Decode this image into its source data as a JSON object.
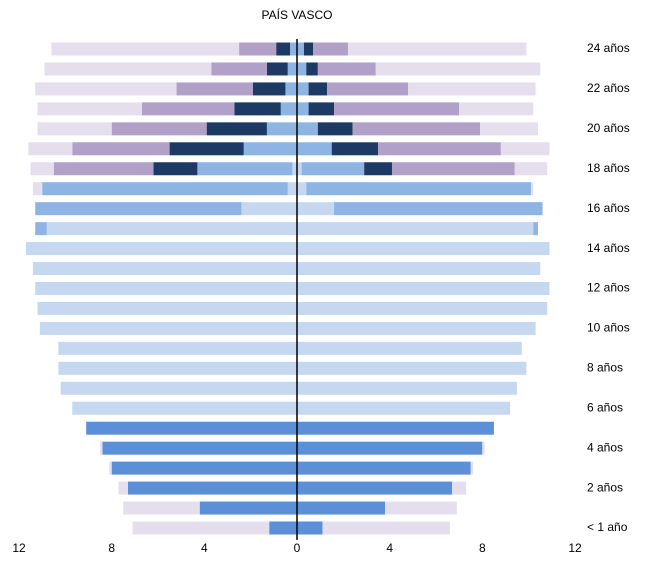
{
  "chart_data": {
    "type": "diverging_stacked_bar",
    "orientation": "horizontal",
    "title": "PAÍS VASCO",
    "categories": [
      "< 1 año",
      null,
      "2 años",
      null,
      "4 años",
      null,
      "6 años",
      null,
      "8 años",
      null,
      "10 años",
      null,
      "12 años",
      null,
      "14 años",
      null,
      "16 años",
      null,
      "18 años",
      null,
      "20 años",
      null,
      "22 años",
      null,
      "24 años"
    ],
    "xlim": [
      -12,
      12
    ],
    "xticks": [
      {
        "value": -12,
        "label": "12"
      },
      {
        "value": -8,
        "label": "8"
      },
      {
        "value": -4,
        "label": "4"
      },
      0,
      4,
      8,
      12
    ],
    "series": [
      {
        "color": "#5b8fd7",
        "values": [
          -1.2,
          -4.2,
          -7.3,
          -8.0,
          -8.4,
          -9.1,
          0,
          0,
          0,
          0,
          0,
          0,
          0,
          0,
          0,
          0,
          0,
          0,
          0,
          0,
          0,
          0,
          0,
          0,
          0
        ]
      },
      {
        "color": "#c6d8f0",
        "values": [
          0,
          0,
          0,
          0,
          0,
          0,
          -9.7,
          -10.2,
          -10.3,
          -10.3,
          -11.1,
          -11.2,
          -11.3,
          -11.4,
          -11.7,
          -10.8,
          -2.4,
          -0.4,
          -0.2,
          0,
          0,
          0,
          0,
          0,
          0
        ]
      },
      {
        "color": "#8db4e3",
        "values": [
          0,
          0,
          0,
          0,
          0,
          0,
          0,
          0,
          0,
          0,
          0,
          0,
          0,
          0,
          0,
          -0.5,
          -8.9,
          -10.6,
          -4.1,
          -2.3,
          -1.3,
          -0.7,
          -0.5,
          -0.4,
          -0.3
        ]
      },
      {
        "color": "#1c3a63",
        "values": [
          0,
          0,
          0,
          0,
          0,
          0,
          0,
          0,
          0,
          0,
          0,
          0,
          0,
          0,
          0,
          0,
          0,
          0,
          -1.9,
          -3.2,
          -2.6,
          -2.0,
          -1.4,
          -0.9,
          -0.6
        ]
      },
      {
        "color": "#b1a0c8",
        "values": [
          0,
          0,
          0,
          0,
          0,
          0,
          0,
          0,
          0,
          0,
          0,
          0,
          0,
          0,
          0,
          0,
          0,
          0,
          -4.3,
          -4.2,
          -4.1,
          -4.0,
          -3.3,
          -2.4,
          -1.6
        ]
      },
      {
        "color": "#e5dfed",
        "values": [
          -5.9,
          -3.3,
          -0.4,
          -0.1,
          -0.1,
          0,
          0,
          0,
          0,
          0,
          0,
          0,
          0,
          0,
          0,
          0,
          0,
          -0.4,
          -1.0,
          -1.9,
          -3.2,
          -4.5,
          -6.1,
          -7.2,
          -8.1
        ]
      },
      {
        "color": "#5b8fd7",
        "values": [
          1.1,
          3.8,
          6.7,
          7.5,
          8.0,
          8.5,
          0,
          0,
          0,
          0,
          0,
          0,
          0,
          0,
          0,
          0,
          0,
          0,
          0,
          0,
          0,
          0,
          0,
          0,
          0
        ]
      },
      {
        "color": "#c6d8f0",
        "values": [
          0,
          0,
          0,
          0,
          0,
          0,
          9.2,
          9.5,
          9.9,
          9.7,
          10.3,
          10.8,
          10.9,
          10.5,
          10.9,
          10.2,
          1.6,
          0.4,
          0.2,
          0,
          0,
          0,
          0,
          0,
          0
        ]
      },
      {
        "color": "#8db4e3",
        "values": [
          0,
          0,
          0,
          0,
          0,
          0,
          0,
          0,
          0,
          0,
          0,
          0,
          0,
          0,
          0,
          0.2,
          9.0,
          9.7,
          2.7,
          1.5,
          0.9,
          0.5,
          0.5,
          0.4,
          0.3
        ]
      },
      {
        "color": "#1c3a63",
        "values": [
          0,
          0,
          0,
          0,
          0,
          0,
          0,
          0,
          0,
          0,
          0,
          0,
          0,
          0,
          0,
          0,
          0,
          0,
          1.2,
          2.0,
          1.5,
          1.1,
          0.8,
          0.5,
          0.4
        ]
      },
      {
        "color": "#b1a0c8",
        "values": [
          0,
          0,
          0,
          0,
          0,
          0,
          0,
          0,
          0,
          0,
          0,
          0,
          0,
          0,
          0,
          0,
          0,
          0,
          5.3,
          5.3,
          5.5,
          5.4,
          3.5,
          2.5,
          1.5
        ]
      },
      {
        "color": "#e5dfed",
        "values": [
          5.5,
          3.1,
          0.6,
          0.1,
          0.1,
          0,
          0,
          0,
          0,
          0,
          0,
          0,
          0,
          0,
          0,
          0,
          0,
          0.1,
          1.4,
          2.1,
          2.5,
          3.2,
          5.5,
          7.1,
          7.7
        ]
      }
    ]
  }
}
